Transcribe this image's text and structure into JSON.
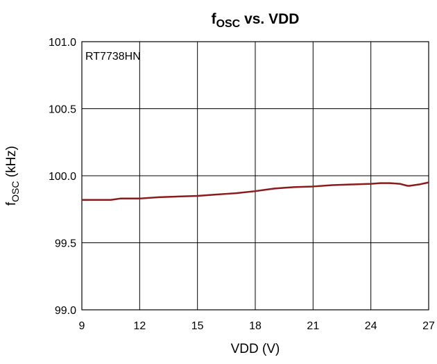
{
  "chart_data": {
    "type": "line",
    "title_main": "f",
    "title_sub": "OSC",
    "title_rest": " vs. VDD",
    "xlabel": "VDD (V)",
    "ylabel_main": "f",
    "ylabel_sub": "OSC",
    "ylabel_rest": " (kHz)",
    "annotation": "RT7738HN",
    "xlim": [
      9,
      27
    ],
    "ylim": [
      99.0,
      101.0
    ],
    "x_ticks": [
      "9",
      "12",
      "15",
      "18",
      "21",
      "24",
      "27"
    ],
    "y_ticks": [
      "99.0",
      "99.5",
      "100.0",
      "100.5",
      "101.0"
    ],
    "grid": true,
    "legend": "none",
    "series": [
      {
        "color": "#8b1a1a",
        "x": [
          9,
          10.5,
          11,
          12,
          13,
          14,
          15,
          16,
          16.5,
          17,
          18,
          18.5,
          19,
          19.5,
          20,
          21,
          22,
          23,
          24,
          24.5,
          25,
          25.5,
          25.9,
          26,
          26.5,
          27
        ],
        "y": [
          99.82,
          99.82,
          99.83,
          99.83,
          99.84,
          99.845,
          99.85,
          99.86,
          99.865,
          99.87,
          99.885,
          99.895,
          99.905,
          99.91,
          99.915,
          99.92,
          99.93,
          99.935,
          99.94,
          99.945,
          99.945,
          99.94,
          99.925,
          99.925,
          99.935,
          99.95
        ]
      }
    ]
  }
}
